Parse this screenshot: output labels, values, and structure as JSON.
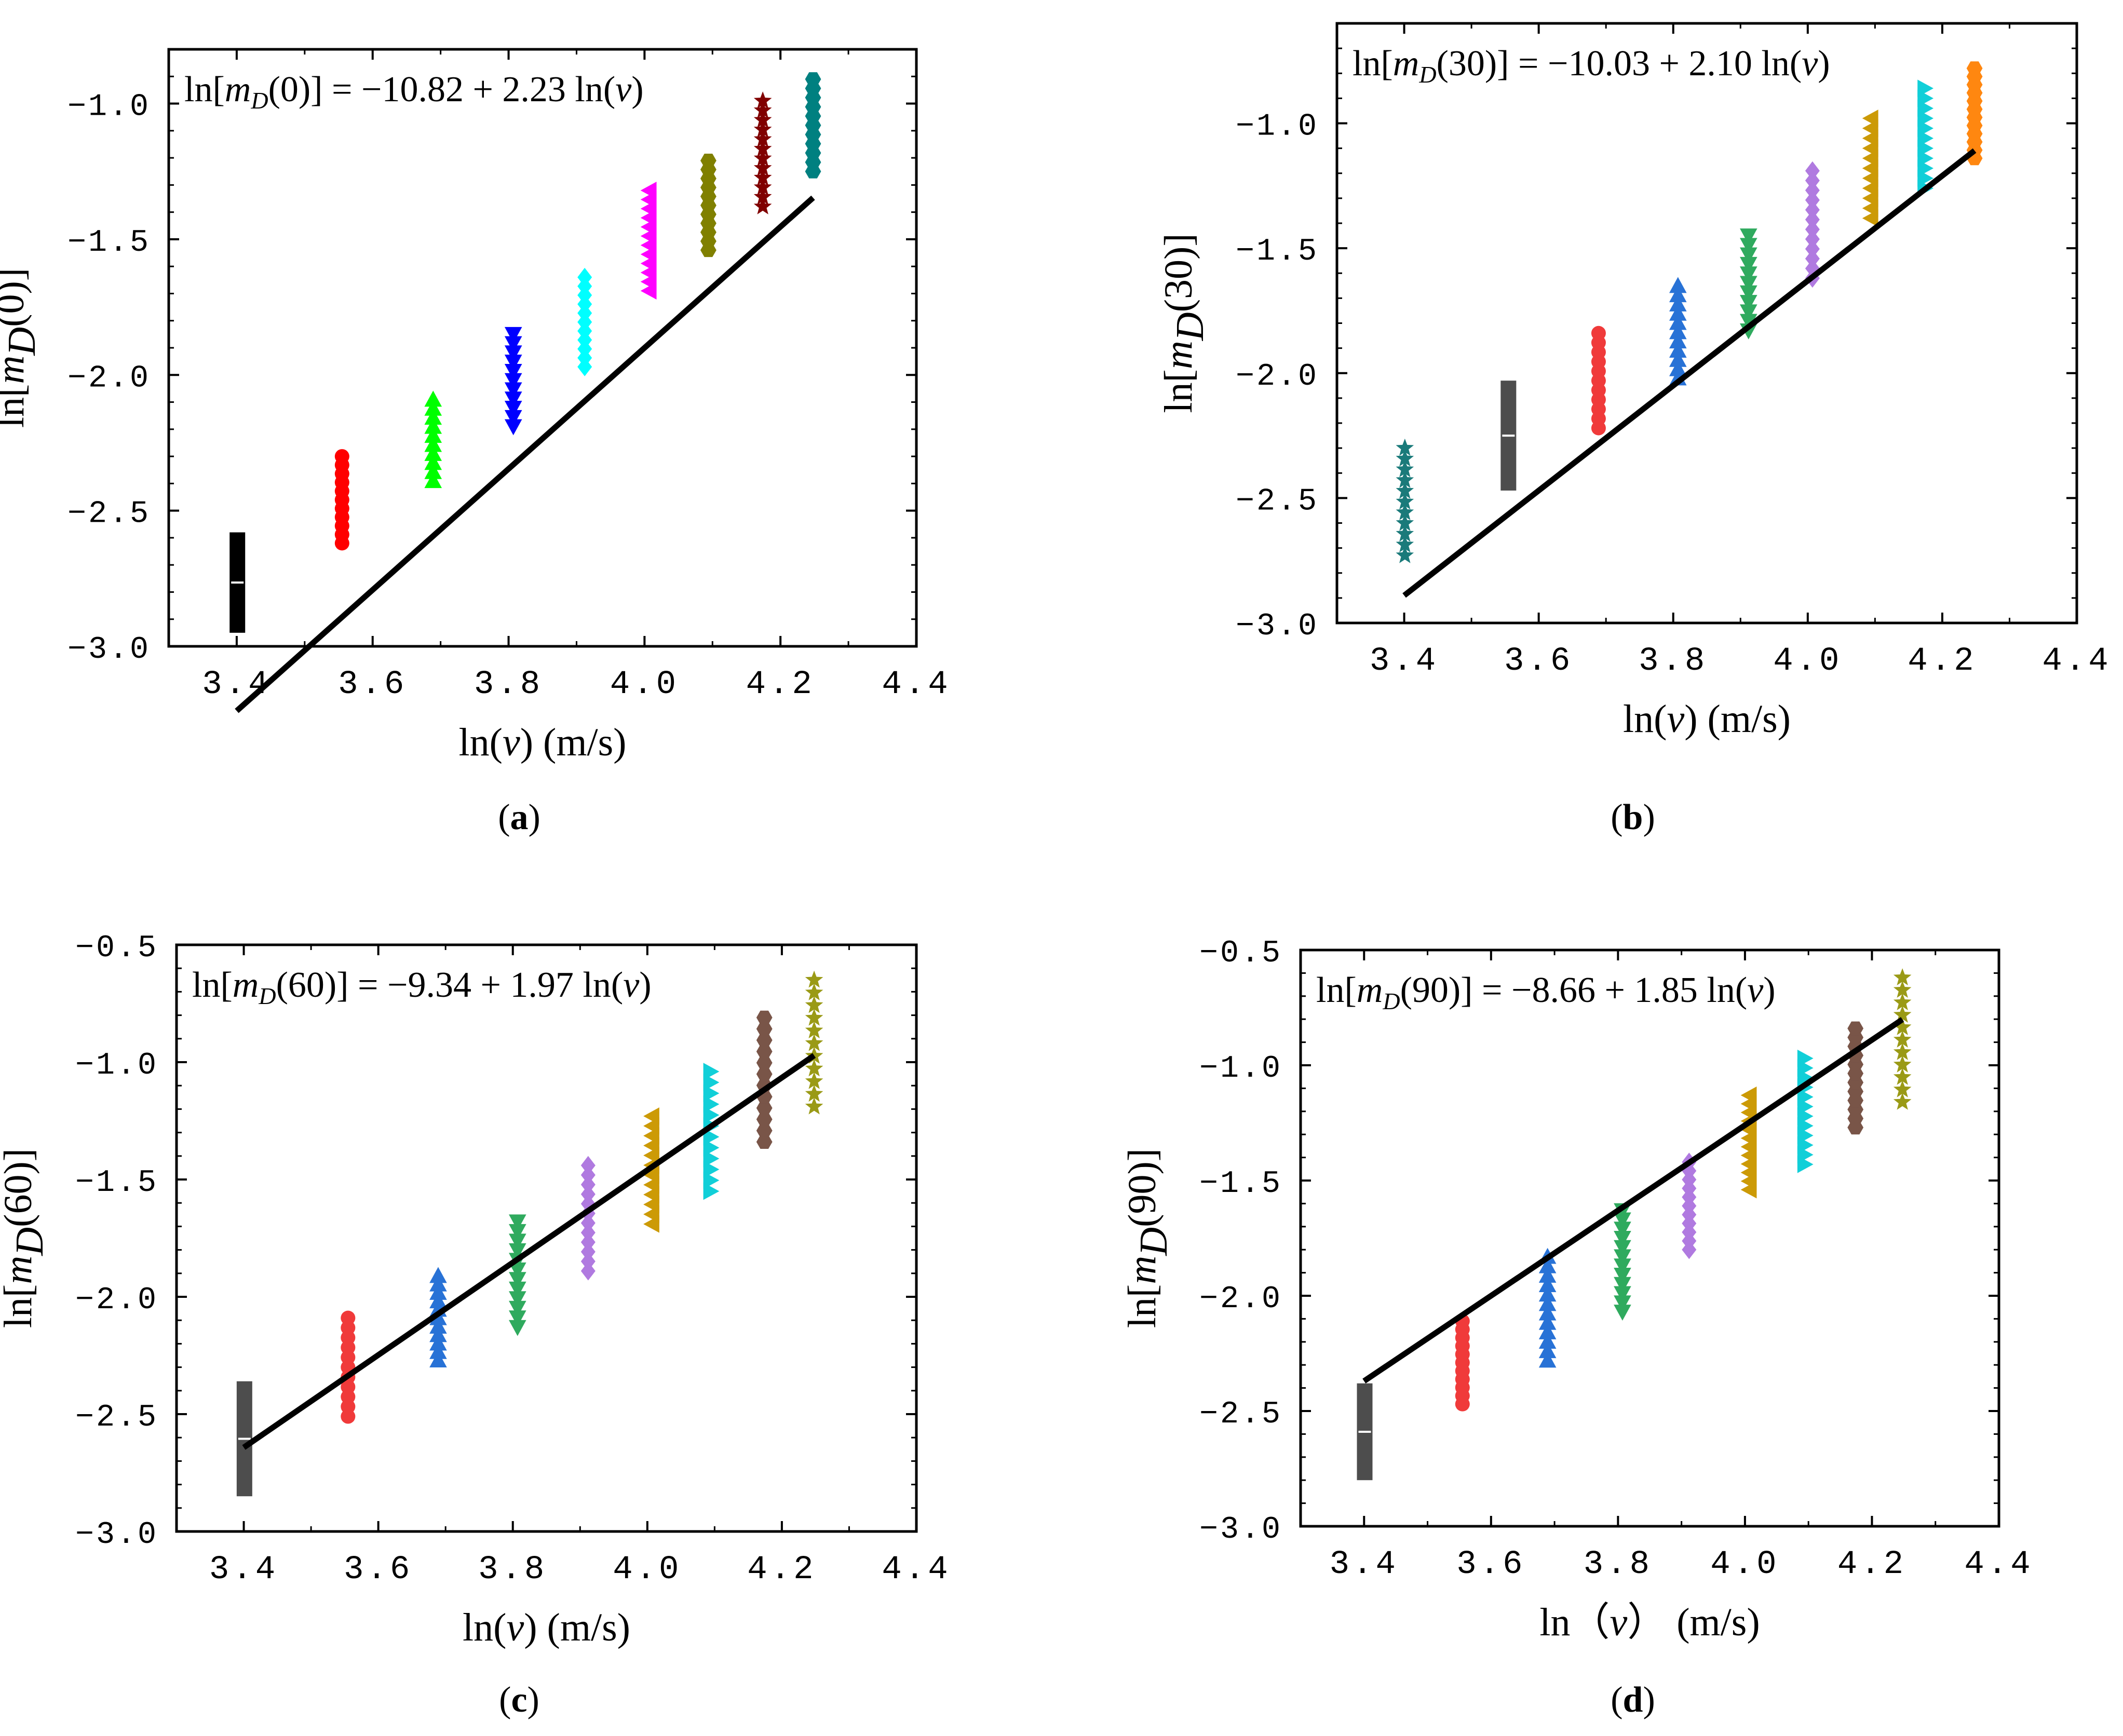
{
  "figure": {
    "captions": [
      "(a)",
      "(b)",
      "(c)",
      "(d)"
    ],
    "caption_letters": [
      "a",
      "b",
      "c",
      "d"
    ]
  },
  "chart_data": [
    {
      "type": "scatter",
      "panel": "a",
      "title": "",
      "equation": {
        "lhs_arg": "0",
        "intercept": "−10.82",
        "slope": "2.23"
      },
      "xlabel": "ln(v) (m/s)",
      "xlabel_parts": {
        "pre": "ln(",
        "var": "v",
        "post": ") (m/s)"
      },
      "ylabel": "ln[mD(0)]",
      "ylabel_arg": "0",
      "xlim": [
        3.3,
        4.4
      ],
      "ylim": [
        -3.0,
        -0.8
      ],
      "xticks": [
        3.4,
        3.6,
        3.8,
        4.0,
        4.2,
        4.4
      ],
      "xtick_labels": [
        "3.4",
        "3.6",
        "3.8",
        "4.0",
        "4.2",
        "4.4"
      ],
      "yticks": [
        -3.0,
        -2.5,
        -2.0,
        -1.5,
        -1.0
      ],
      "ytick_labels": [
        "−3.0",
        "−2.5",
        "−2.0",
        "−1.5",
        "−1.0"
      ],
      "fit": {
        "x": [
          3.4,
          4.248
        ],
        "intercept": -10.82,
        "slope": 2.23
      },
      "series": [
        {
          "x": 3.401,
          "ymin": -2.95,
          "ymax": -2.58,
          "n": 12,
          "marker": "bar",
          "color": "#000000"
        },
        {
          "x": 3.555,
          "ymin": -2.62,
          "ymax": -2.3,
          "n": 11,
          "marker": "circle",
          "color": "#ff0000"
        },
        {
          "x": 3.689,
          "ymin": -2.39,
          "ymax": -2.09,
          "n": 10,
          "marker": "triangle-up",
          "color": "#00ff00"
        },
        {
          "x": 3.807,
          "ymin": -2.19,
          "ymax": -1.85,
          "n": 11,
          "marker": "triangle-down",
          "color": "#0000ff"
        },
        {
          "x": 3.912,
          "ymin": -1.97,
          "ymax": -1.64,
          "n": 11,
          "marker": "diamond",
          "color": "#00ffff"
        },
        {
          "x": 4.007,
          "ymin": -1.69,
          "ymax": -1.32,
          "n": 12,
          "marker": "triangle-left",
          "color": "#ff00ff"
        },
        {
          "x": 4.094,
          "ymin": -1.54,
          "ymax": -1.21,
          "n": 11,
          "marker": "hexagon",
          "color": "#808000"
        },
        {
          "x": 4.174,
          "ymin": -1.38,
          "ymax": -0.99,
          "n": 12,
          "marker": "star",
          "color": "#800000"
        },
        {
          "x": 4.248,
          "ymin": -1.25,
          "ymax": -0.91,
          "n": 11,
          "marker": "hexagon",
          "color": "#008080"
        }
      ]
    },
    {
      "type": "scatter",
      "panel": "b",
      "title": "",
      "equation": {
        "lhs_arg": "30",
        "intercept": "−10.03",
        "slope": "2.10"
      },
      "xlabel": "ln(v) (m/s)",
      "xlabel_parts": {
        "pre": "ln(",
        "var": "v",
        "post": ")  (m/s)"
      },
      "ylabel": "ln[mD(30)]",
      "ylabel_arg": "30",
      "xlim": [
        3.3,
        4.4
      ],
      "ylim": [
        -3.0,
        -0.6
      ],
      "xticks": [
        3.4,
        3.6,
        3.8,
        4.0,
        4.2,
        4.4
      ],
      "xtick_labels": [
        "3.4",
        "3.6",
        "3.8",
        "4.0",
        "4.2",
        "4.4"
      ],
      "yticks": [
        -3.0,
        -2.5,
        -2.0,
        -1.5,
        -1.0
      ],
      "ytick_labels": [
        "−3.0",
        "−2.5",
        "−2.0",
        "−1.5",
        "−1.0"
      ],
      "fit": {
        "x": [
          3.4,
          4.248
        ],
        "intercept": -10.03,
        "slope": 2.1
      },
      "series": [
        {
          "x": 3.401,
          "ymin": -2.73,
          "ymax": -2.3,
          "n": 11,
          "marker": "star",
          "color": "#1a7a7a"
        },
        {
          "x": 3.555,
          "ymin": -2.47,
          "ymax": -2.03,
          "n": 12,
          "marker": "bar",
          "color": "#4d4d4d"
        },
        {
          "x": 3.689,
          "ymin": -2.22,
          "ymax": -1.84,
          "n": 11,
          "marker": "circle",
          "color": "#f03a3a"
        },
        {
          "x": 3.807,
          "ymin": -2.02,
          "ymax": -1.65,
          "n": 11,
          "marker": "triangle-up",
          "color": "#2872d6"
        },
        {
          "x": 3.912,
          "ymin": -1.83,
          "ymax": -1.45,
          "n": 11,
          "marker": "triangle-down",
          "color": "#2faa5e"
        },
        {
          "x": 4.007,
          "ymin": -1.62,
          "ymax": -1.19,
          "n": 12,
          "marker": "diamond",
          "color": "#b07ae0"
        },
        {
          "x": 4.094,
          "ymin": -1.38,
          "ymax": -0.98,
          "n": 11,
          "marker": "triangle-left",
          "color": "#cc9a06"
        },
        {
          "x": 4.174,
          "ymin": -1.26,
          "ymax": -0.86,
          "n": 11,
          "marker": "triangle-right",
          "color": "#11cfd8"
        },
        {
          "x": 4.248,
          "ymin": -1.14,
          "ymax": -0.78,
          "n": 12,
          "marker": "hexagon",
          "color": "#ff8710"
        }
      ]
    },
    {
      "type": "scatter",
      "panel": "c",
      "title": "",
      "equation": {
        "lhs_arg": "60",
        "intercept": "−9.34",
        "slope": "1.97"
      },
      "xlabel": "ln(v) (m/s)",
      "xlabel_parts": {
        "pre": "ln(",
        "var": "v",
        "post": ")  (m/s)"
      },
      "ylabel": "ln[mD(60)]",
      "ylabel_arg": "60",
      "xlim": [
        3.3,
        4.4
      ],
      "ylim": [
        -3.0,
        -0.5
      ],
      "xticks": [
        3.4,
        3.6,
        3.8,
        4.0,
        4.2,
        4.4
      ],
      "xtick_labels": [
        "3.4",
        "3.6",
        "3.8",
        "4.0",
        "4.2",
        "4.4"
      ],
      "yticks": [
        -3.0,
        -2.5,
        -2.0,
        -1.5,
        -1.0,
        -0.5
      ],
      "ytick_labels": [
        "−3.0",
        "−2.5",
        "−2.0",
        "−1.5",
        "−1.0",
        "−0.5"
      ],
      "fit": {
        "x": [
          3.4,
          4.248
        ],
        "intercept": -9.34,
        "slope": 1.97
      },
      "series": [
        {
          "x": 3.401,
          "ymin": -2.85,
          "ymax": -2.36,
          "n": 12,
          "marker": "bar",
          "color": "#4d4d4d"
        },
        {
          "x": 3.555,
          "ymin": -2.51,
          "ymax": -2.09,
          "n": 11,
          "marker": "circle",
          "color": "#f03a3a"
        },
        {
          "x": 3.689,
          "ymin": -2.27,
          "ymax": -1.91,
          "n": 11,
          "marker": "triangle-up",
          "color": "#2872d6"
        },
        {
          "x": 3.807,
          "ymin": -2.13,
          "ymax": -1.68,
          "n": 12,
          "marker": "triangle-down",
          "color": "#2faa5e"
        },
        {
          "x": 3.912,
          "ymin": -1.89,
          "ymax": -1.44,
          "n": 12,
          "marker": "diamond",
          "color": "#b07ae0"
        },
        {
          "x": 4.007,
          "ymin": -1.69,
          "ymax": -1.23,
          "n": 12,
          "marker": "triangle-left",
          "color": "#cc9a06"
        },
        {
          "x": 4.094,
          "ymin": -1.55,
          "ymax": -1.04,
          "n": 12,
          "marker": "triangle-right",
          "color": "#11cfd8"
        },
        {
          "x": 4.174,
          "ymin": -1.34,
          "ymax": -0.81,
          "n": 12,
          "marker": "hexagon",
          "color": "#795548"
        },
        {
          "x": 4.248,
          "ymin": -1.19,
          "ymax": -0.65,
          "n": 11,
          "marker": "star",
          "color": "#9a9a16"
        }
      ]
    },
    {
      "type": "scatter",
      "panel": "d",
      "title": "",
      "equation": {
        "lhs_arg": "90",
        "intercept": "−8.66",
        "slope": "1.85"
      },
      "xlabel": "ln（v） (m/s)",
      "xlabel_parts": {
        "pre": "ln（",
        "var": "v",
        "post": "）  (m/s)"
      },
      "ylabel": "ln[mD(90)]",
      "ylabel_arg": "90",
      "xlim": [
        3.3,
        4.4
      ],
      "ylim": [
        -3.0,
        -0.5
      ],
      "xticks": [
        3.4,
        3.6,
        3.8,
        4.0,
        4.2,
        4.4
      ],
      "xtick_labels": [
        "3.4",
        "3.6",
        "3.8",
        "4.0",
        "4.2",
        "4.4"
      ],
      "yticks": [
        -3.0,
        -2.5,
        -2.0,
        -1.5,
        -1.0,
        -0.5
      ],
      "ytick_labels": [
        "−3.0",
        "−2.5",
        "−2.0",
        "−1.5",
        "−1.0",
        "−0.5"
      ],
      "fit": {
        "x": [
          3.4,
          4.248
        ],
        "intercept": -8.66,
        "slope": 1.85
      },
      "series": [
        {
          "x": 3.401,
          "ymin": -2.8,
          "ymax": -2.38,
          "n": 12,
          "marker": "bar",
          "color": "#4d4d4d"
        },
        {
          "x": 3.555,
          "ymin": -2.47,
          "ymax": -2.11,
          "n": 11,
          "marker": "circle",
          "color": "#f03a3a"
        },
        {
          "x": 3.689,
          "ymin": -2.28,
          "ymax": -1.83,
          "n": 12,
          "marker": "triangle-up",
          "color": "#2872d6"
        },
        {
          "x": 3.807,
          "ymin": -2.07,
          "ymax": -1.63,
          "n": 12,
          "marker": "triangle-down",
          "color": "#2faa5e"
        },
        {
          "x": 3.912,
          "ymin": -1.8,
          "ymax": -1.42,
          "n": 11,
          "marker": "diamond",
          "color": "#b07ae0"
        },
        {
          "x": 4.007,
          "ymin": -1.54,
          "ymax": -1.13,
          "n": 12,
          "marker": "triangle-left",
          "color": "#cc9a06"
        },
        {
          "x": 4.094,
          "ymin": -1.43,
          "ymax": -0.97,
          "n": 12,
          "marker": "triangle-right",
          "color": "#11cfd8"
        },
        {
          "x": 4.174,
          "ymin": -1.27,
          "ymax": -0.84,
          "n": 12,
          "marker": "hexagon",
          "color": "#795548"
        },
        {
          "x": 4.248,
          "ymin": -1.16,
          "ymax": -0.62,
          "n": 11,
          "marker": "star",
          "color": "#9a9a16"
        }
      ]
    }
  ]
}
